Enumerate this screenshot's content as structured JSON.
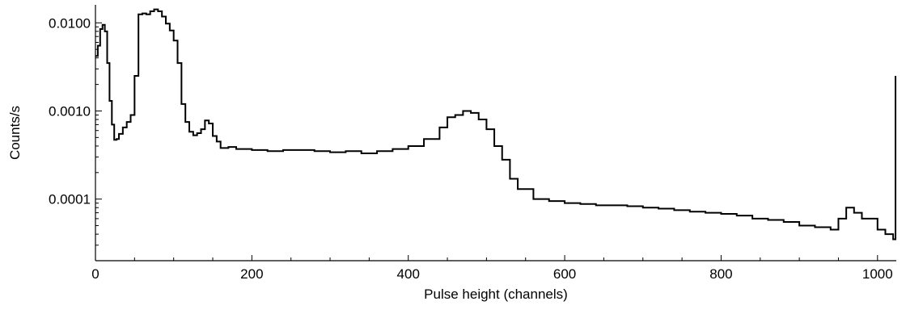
{
  "chart_data": {
    "type": "line",
    "title": "",
    "xlabel": "Pulse height (channels)",
    "ylabel": "Counts/s",
    "x_scale": "linear",
    "y_scale": "log",
    "xlim": [
      0,
      1024
    ],
    "ylim": [
      2e-05,
      0.016
    ],
    "x_ticks": [
      0,
      200,
      400,
      600,
      800,
      1000
    ],
    "x_tick_labels": [
      "0",
      "200",
      "400",
      "600",
      "800",
      "1000"
    ],
    "y_ticks": [
      0.0001,
      0.001,
      0.01
    ],
    "y_tick_labels": [
      "0.0001",
      "0.0010",
      "0.0100"
    ],
    "grid": false,
    "legend": "none",
    "series": [
      {
        "color": "#000000",
        "step": true,
        "x": [
          0,
          3,
          6,
          9,
          12,
          15,
          18,
          21,
          24,
          27,
          30,
          35,
          40,
          45,
          50,
          55,
          60,
          65,
          70,
          75,
          80,
          85,
          90,
          95,
          100,
          105,
          110,
          115,
          120,
          125,
          130,
          135,
          140,
          145,
          150,
          155,
          160,
          170,
          180,
          200,
          220,
          240,
          260,
          280,
          300,
          320,
          340,
          360,
          380,
          400,
          420,
          440,
          450,
          460,
          470,
          480,
          490,
          500,
          510,
          520,
          530,
          540,
          560,
          580,
          600,
          620,
          640,
          660,
          680,
          700,
          720,
          740,
          760,
          780,
          800,
          820,
          840,
          860,
          880,
          900,
          920,
          940,
          950,
          960,
          970,
          980,
          1000,
          1010,
          1020,
          1023
        ],
        "y": [
          0.0042,
          0.0055,
          0.0085,
          0.0095,
          0.008,
          0.0035,
          0.0013,
          0.0007,
          0.00047,
          0.00048,
          0.00055,
          0.00065,
          0.00075,
          0.0009,
          0.0025,
          0.0125,
          0.0128,
          0.0125,
          0.0135,
          0.0142,
          0.0135,
          0.0118,
          0.0098,
          0.0082,
          0.0063,
          0.0035,
          0.0012,
          0.00075,
          0.00058,
          0.00053,
          0.00056,
          0.00062,
          0.00078,
          0.00072,
          0.00052,
          0.00045,
          0.00038,
          0.00039,
          0.00037,
          0.00036,
          0.00035,
          0.00036,
          0.00036,
          0.00035,
          0.00034,
          0.00035,
          0.00033,
          0.00035,
          0.00037,
          0.0004,
          0.00048,
          0.00065,
          0.00085,
          0.0009,
          0.001,
          0.00095,
          0.0008,
          0.00062,
          0.0004,
          0.00028,
          0.00017,
          0.00013,
          0.0001,
          9.5e-05,
          9e-05,
          8.8e-05,
          8.5e-05,
          8.5e-05,
          8.3e-05,
          8e-05,
          7.8e-05,
          7.5e-05,
          7.2e-05,
          7e-05,
          6.8e-05,
          6.5e-05,
          6e-05,
          5.8e-05,
          5.5e-05,
          5e-05,
          4.8e-05,
          4.5e-05,
          6e-05,
          8e-05,
          7e-05,
          6e-05,
          4.5e-05,
          4e-05,
          3.5e-05,
          0.0025
        ]
      }
    ]
  }
}
